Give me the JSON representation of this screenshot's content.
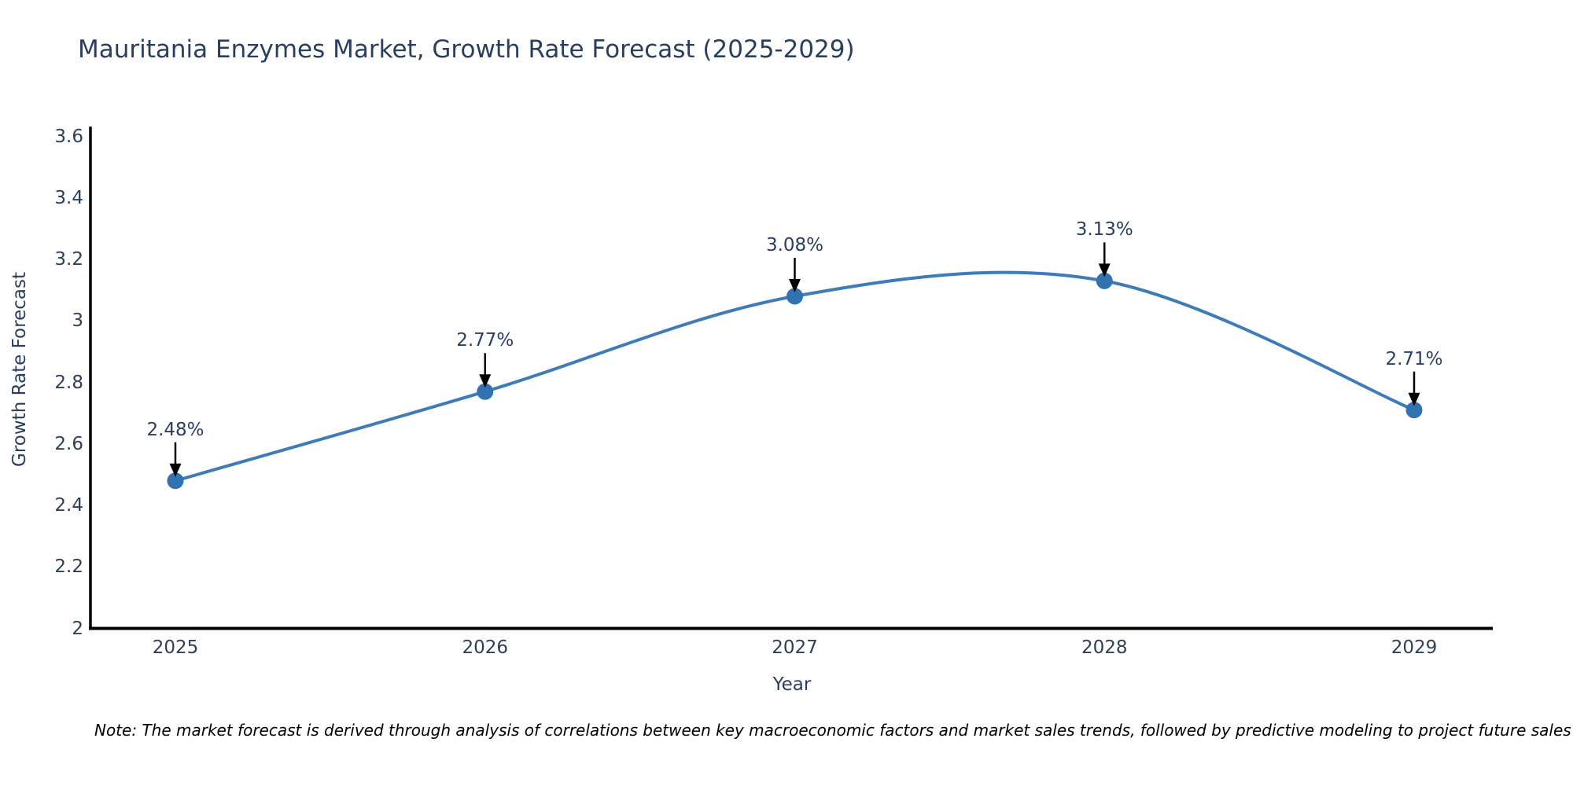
{
  "chart_data": {
    "type": "line",
    "title": "Mauritania Enzymes Market, Growth Rate Forecast (2025-2029)",
    "categories": [
      "2025",
      "2026",
      "2027",
      "2028",
      "2029"
    ],
    "values": [
      2.48,
      2.77,
      3.08,
      3.13,
      2.71
    ],
    "point_labels": [
      "2.48%",
      "2.77%",
      "3.08%",
      "3.13%",
      "2.71%"
    ],
    "xlabel": "Year",
    "ylabel": "Growth Rate Forecast",
    "ylim": [
      2,
      3.63
    ],
    "yticks": [
      2,
      2.2,
      2.4,
      2.6,
      2.8,
      3,
      3.2,
      3.4,
      3.6
    ],
    "line_shape": "spline",
    "grid": false,
    "legend": "none",
    "colors": {
      "line": "#3e7cb9",
      "marker": "#3172b0",
      "axis": "#000000",
      "arrow": "#000000",
      "text": "#2a3f5f"
    }
  },
  "footnote": "Note: The market forecast is derived through analysis of correlations between key macroeconomic factors and market sales trends, followed by predictive modeling to project future sales"
}
